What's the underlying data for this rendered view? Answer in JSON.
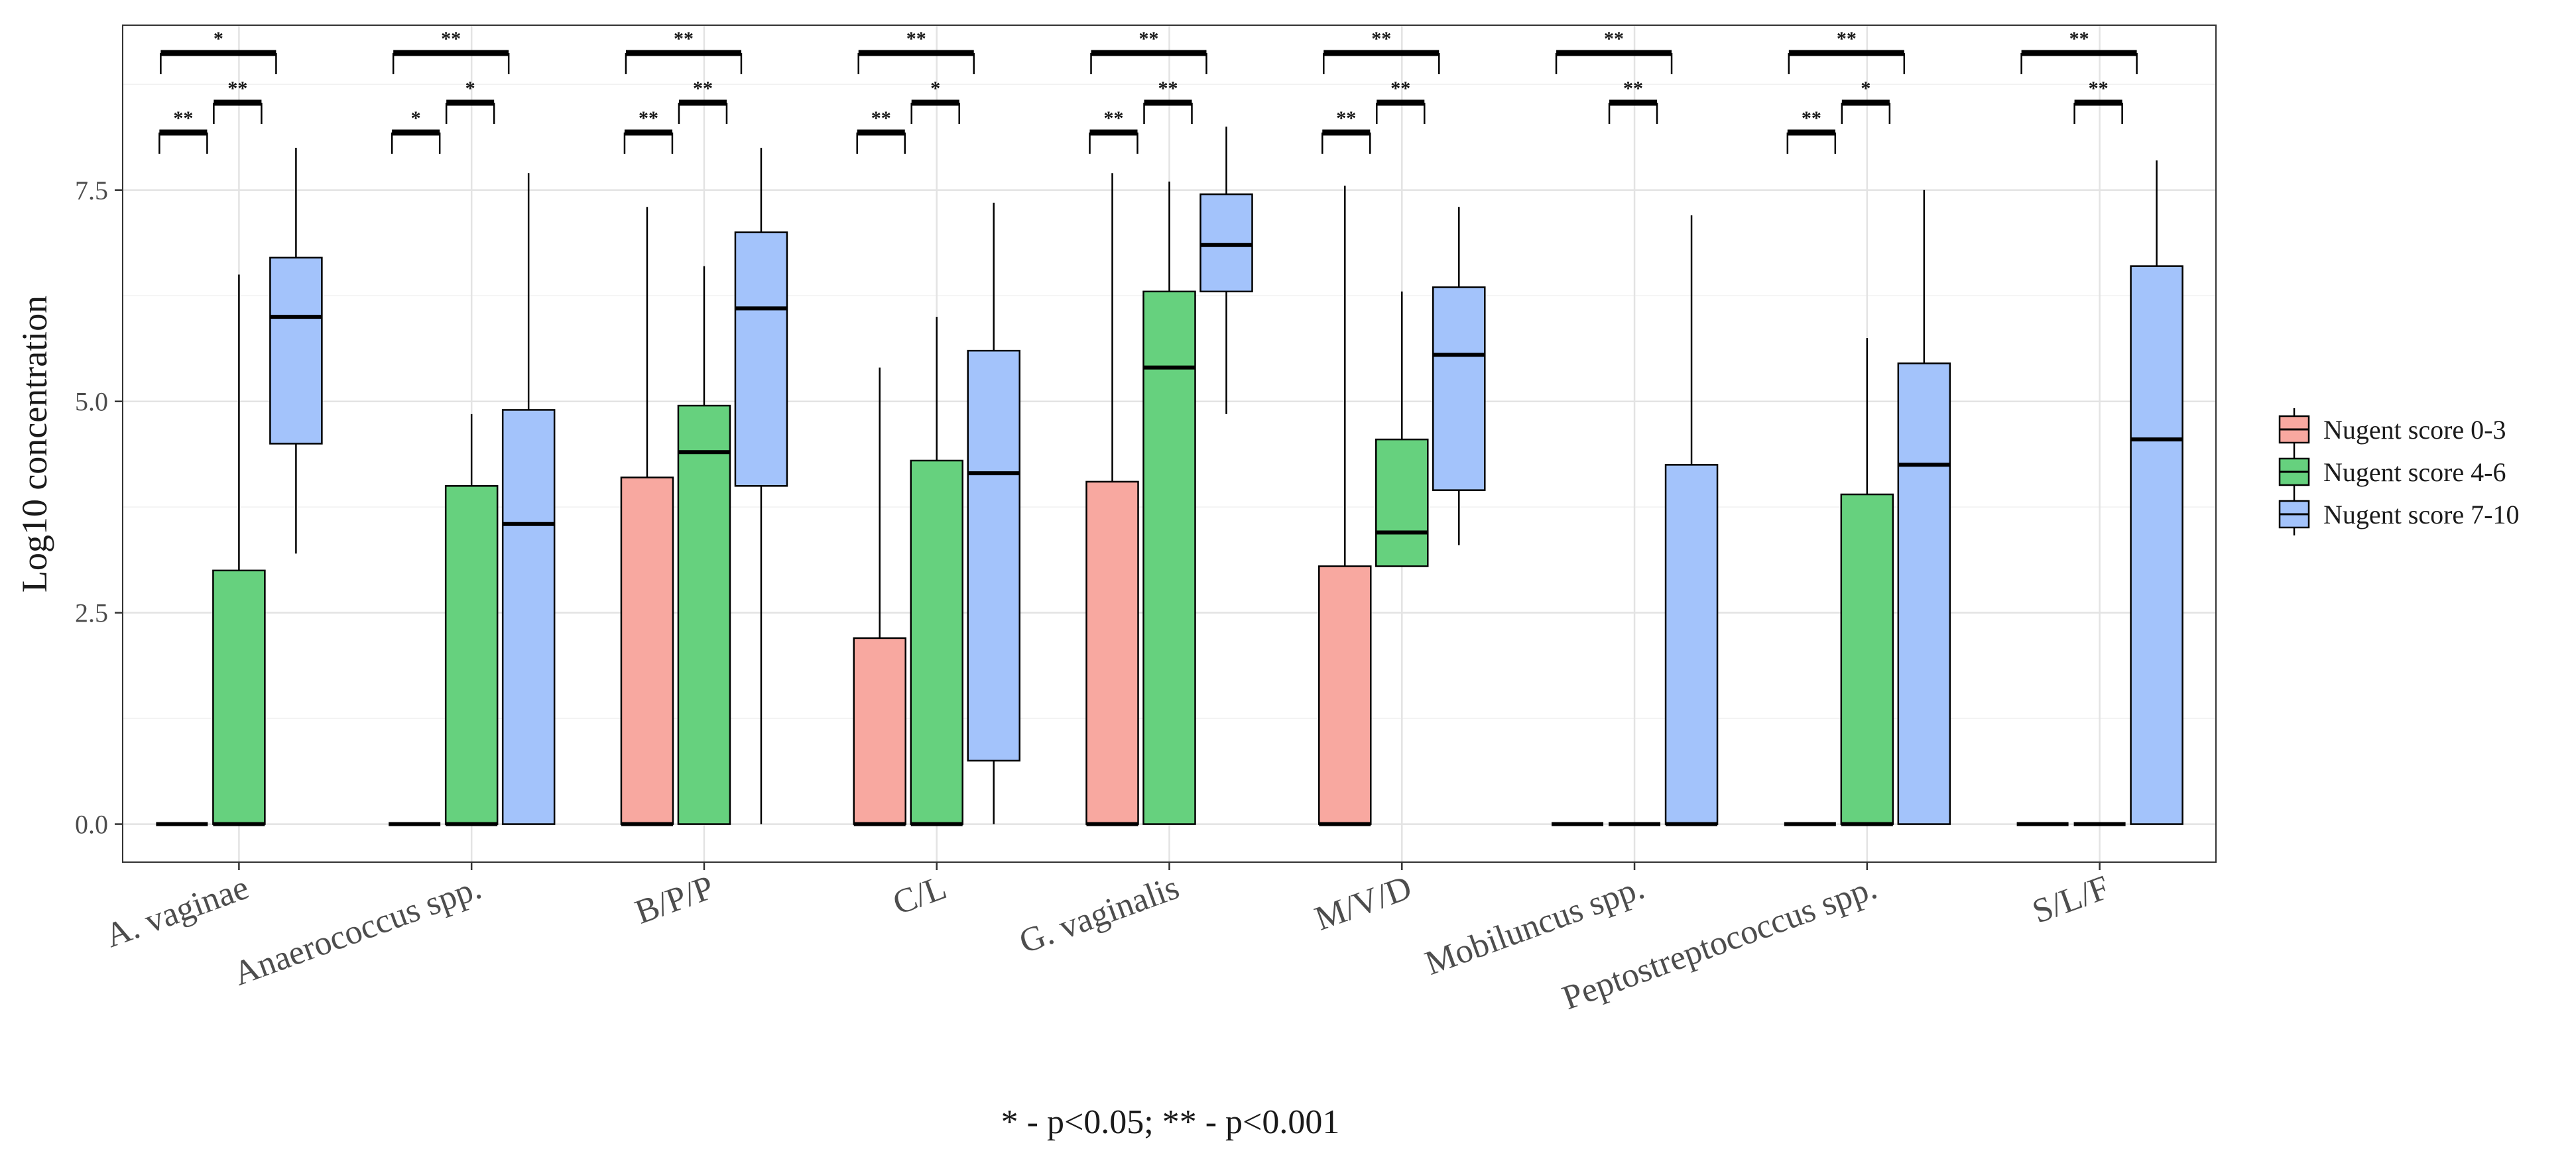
{
  "chart_data": {
    "type": "boxplot",
    "ylabel": "Log10 concentration",
    "ylim": [
      -0.45,
      9.45
    ],
    "y_ticks": [
      0.0,
      2.5,
      5.0,
      7.5
    ],
    "y_tick_labels": [
      "0.0",
      "2.5",
      "5.0",
      "7.5"
    ],
    "categories": [
      "A. vaginae",
      "Anaerococcus spp.",
      "B/P/P",
      "C/L",
      "G. vaginalis",
      "M/V/D",
      "Mobiluncus spp.",
      "Peptostreptococcus spp.",
      "S/L/F"
    ],
    "legend_position": "right",
    "series": [
      {
        "name": "Nugent score 0-3",
        "label": "Nugent score 0-3",
        "color": "#F8A8A0",
        "boxes": [
          {
            "q1": 0,
            "median": 0,
            "q3": 0,
            "whisker_low": 0,
            "whisker_high": 0
          },
          {
            "q1": 0,
            "median": 0,
            "q3": 0,
            "whisker_low": 0,
            "whisker_high": 0
          },
          {
            "q1": 0,
            "median": 0,
            "q3": 4.1,
            "whisker_low": 0,
            "whisker_high": 7.3
          },
          {
            "q1": 0,
            "median": 0,
            "q3": 2.2,
            "whisker_low": 0,
            "whisker_high": 5.4
          },
          {
            "q1": 0,
            "median": 0,
            "q3": 4.05,
            "whisker_low": 0,
            "whisker_high": 7.7
          },
          {
            "q1": 0,
            "median": 0,
            "q3": 3.05,
            "whisker_low": 0,
            "whisker_high": 7.55
          },
          {
            "q1": 0,
            "median": 0,
            "q3": 0,
            "whisker_low": 0,
            "whisker_high": 0
          },
          {
            "q1": 0,
            "median": 0,
            "q3": 0,
            "whisker_low": 0,
            "whisker_high": 0
          },
          {
            "q1": 0,
            "median": 0,
            "q3": 0,
            "whisker_low": 0,
            "whisker_high": 0
          }
        ]
      },
      {
        "name": "Nugent score 4-6",
        "label": "Nugent score 4-6",
        "color": "#66D17E",
        "boxes": [
          {
            "q1": 0,
            "median": 0,
            "q3": 3.0,
            "whisker_low": 0,
            "whisker_high": 6.5
          },
          {
            "q1": 0,
            "median": 0,
            "q3": 4.0,
            "whisker_low": 0,
            "whisker_high": 4.85
          },
          {
            "q1": 0,
            "median": 4.4,
            "q3": 4.95,
            "whisker_low": 0,
            "whisker_high": 6.6
          },
          {
            "q1": 0,
            "median": 0,
            "q3": 4.3,
            "whisker_low": 0,
            "whisker_high": 6.0
          },
          {
            "q1": 0,
            "median": 5.4,
            "q3": 6.3,
            "whisker_low": 0,
            "whisker_high": 7.6
          },
          {
            "q1": 3.05,
            "median": 3.45,
            "q3": 4.55,
            "whisker_low": 3.05,
            "whisker_high": 6.3
          },
          {
            "q1": 0,
            "median": 0,
            "q3": 0,
            "whisker_low": 0,
            "whisker_high": 0
          },
          {
            "q1": 0,
            "median": 0,
            "q3": 3.9,
            "whisker_low": 0,
            "whisker_high": 5.75
          },
          {
            "q1": 0,
            "median": 0,
            "q3": 0,
            "whisker_low": 0,
            "whisker_high": 0
          }
        ]
      },
      {
        "name": "Nugent score 7-10",
        "label": "Nugent score 7-10",
        "color": "#A3C3FB",
        "boxes": [
          {
            "q1": 4.5,
            "median": 6.0,
            "q3": 6.7,
            "whisker_low": 3.2,
            "whisker_high": 8.0
          },
          {
            "q1": 0,
            "median": 3.55,
            "q3": 4.9,
            "whisker_low": 0,
            "whisker_high": 7.7
          },
          {
            "q1": 4.0,
            "median": 6.1,
            "q3": 7.0,
            "whisker_low": 0,
            "whisker_high": 8.0
          },
          {
            "q1": 0.75,
            "median": 4.15,
            "q3": 5.6,
            "whisker_low": 0,
            "whisker_high": 7.35
          },
          {
            "q1": 6.3,
            "median": 6.85,
            "q3": 7.45,
            "whisker_low": 4.85,
            "whisker_high": 8.25
          },
          {
            "q1": 3.95,
            "median": 5.55,
            "q3": 6.35,
            "whisker_low": 3.3,
            "whisker_high": 7.3
          },
          {
            "q1": 0,
            "median": 0,
            "q3": 4.25,
            "whisker_low": 0,
            "whisker_high": 7.2
          },
          {
            "q1": 0,
            "median": 4.25,
            "q3": 5.45,
            "whisker_low": 0,
            "whisker_high": 7.5
          },
          {
            "q1": 0,
            "median": 4.55,
            "q3": 6.6,
            "whisker_low": 0,
            "whisker_high": 7.85
          }
        ]
      }
    ],
    "significance": [
      {
        "pair_12": "**",
        "pair_23": "**",
        "pair_13": "*"
      },
      {
        "pair_12": "*",
        "pair_23": "*",
        "pair_13": "**"
      },
      {
        "pair_12": "**",
        "pair_23": "**",
        "pair_13": "**"
      },
      {
        "pair_12": "**",
        "pair_23": "*",
        "pair_13": "**"
      },
      {
        "pair_12": "**",
        "pair_23": "**",
        "pair_13": "**"
      },
      {
        "pair_12": "**",
        "pair_23": "**",
        "pair_13": "**"
      },
      {
        "pair_12": null,
        "pair_23": "**",
        "pair_13": "**"
      },
      {
        "pair_12": "**",
        "pair_23": "*",
        "pair_13": "**"
      },
      {
        "pair_12": null,
        "pair_23": "**",
        "pair_13": "**"
      }
    ],
    "footnote": "* - p<0.05; ** - p<0.001"
  }
}
